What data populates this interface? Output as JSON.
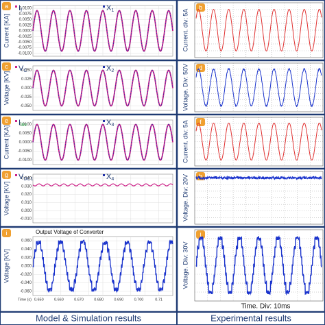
{
  "left_panels": [
    {
      "letter": "a",
      "y_label": "Current [KA]",
      "legend": [
        {
          "main": "I",
          "sub": "f"
        },
        {
          "main": "X",
          "sub": "1"
        }
      ],
      "y_ticks": [
        "0.0100",
        "0.0075",
        "0.0050",
        "0.0025",
        "0.0000",
        "-0.0025",
        "-0.0050",
        "-0.0075",
        "-0.0100"
      ]
    },
    {
      "letter": "c",
      "y_label": "Voltage [KV]",
      "legend": [
        {
          "main": "V",
          "sub": "C"
        },
        {
          "main": "X",
          "sub": "2"
        }
      ],
      "y_ticks": [
        "0.050",
        "0.025",
        "0.000",
        "-0.025",
        "-0.050"
      ]
    },
    {
      "letter": "e",
      "y_label": "Current [KA]",
      "legend": [
        {
          "main": "I",
          "sub": "inv"
        },
        {
          "main": "X",
          "sub": "3"
        }
      ],
      "y_ticks": [
        "0.0100",
        "0.0050",
        "0.0000",
        "-0.0050",
        "-0.0100"
      ]
    },
    {
      "letter": "g",
      "y_label": "Voltage [KV]",
      "legend": [
        {
          "main": "V",
          "sub": "DC1"
        },
        {
          "main": "X",
          "sub": "4"
        }
      ],
      "y_ticks": [
        "0.040",
        "0.030",
        "0.020",
        "0.010",
        "0.000",
        "-0.010"
      ]
    },
    {
      "letter": "i",
      "y_label": "Voltage [KV]",
      "title": "Output Voltage of Converter",
      "y_ticks": [
        "0.060",
        "0.040",
        "0.020",
        "0.000",
        "-0.020",
        "-0.040",
        "-0.060"
      ],
      "x_label": "Time (s)",
      "x_ticks": [
        "0.650",
        "0.660",
        "0.670",
        "0.680",
        "0.690",
        "0.700",
        "0.71"
      ]
    }
  ],
  "right_panels": [
    {
      "letter": "b",
      "y_label": "Current. div: 5A"
    },
    {
      "letter": "d",
      "y_label": "Voltage. Div: 50V"
    },
    {
      "letter": "f",
      "y_label": "Current. div: 5A"
    },
    {
      "letter": "h",
      "y_label": "Voltage. Div: 20V"
    },
    {
      "letter": "j",
      "y_label": "Voltage. Div: 30V",
      "x_label": "Time. Div: 10ms"
    }
  ],
  "captions": [
    "Model & Simulation results",
    "Experimental results"
  ]
}
